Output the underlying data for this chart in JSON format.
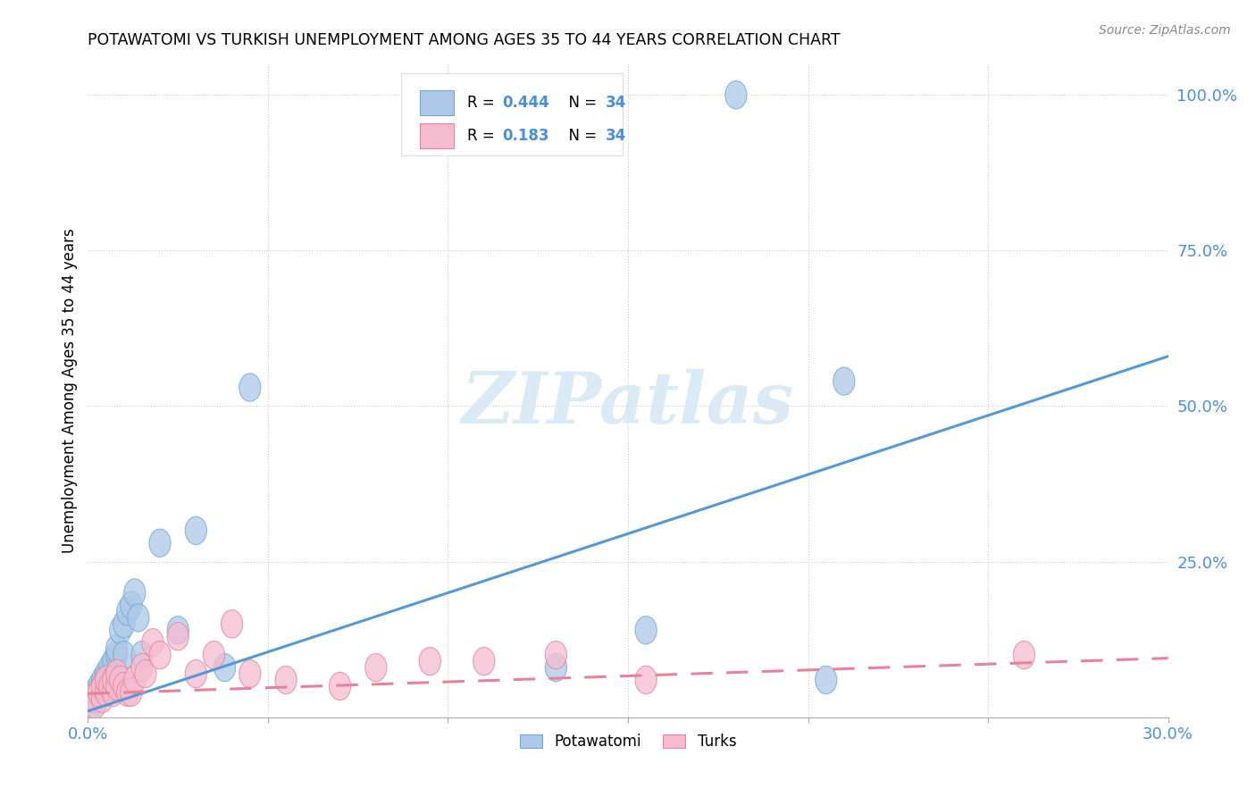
{
  "title": "POTAWATOMI VS TURKISH UNEMPLOYMENT AMONG AGES 35 TO 44 YEARS CORRELATION CHART",
  "source": "Source: ZipAtlas.com",
  "ylabel": "Unemployment Among Ages 35 to 44 years",
  "xlim": [
    0.0,
    0.3
  ],
  "ylim": [
    0.0,
    1.05
  ],
  "ytick_positions": [
    0.25,
    0.5,
    0.75,
    1.0
  ],
  "ytick_labels": [
    "25.0%",
    "50.0%",
    "75.0%",
    "100.0%"
  ],
  "potawatomi_color": "#adc8e8",
  "turks_color": "#f5bcd0",
  "potawatomi_edge_color": "#6aaad4",
  "turks_edge_color": "#e8829a",
  "potawatomi_line_color": "#5599d5",
  "turks_line_color": "#e8829a",
  "watermark_color": "#d5e8f5",
  "legend_R1": "0.444",
  "legend_R2": "0.183",
  "legend_N": "34",
  "legend_text_color": "#4a90d9",
  "pot_line_x0": 0.0,
  "pot_line_y0": 0.01,
  "pot_line_x1": 0.3,
  "pot_line_y1": 0.58,
  "turks_line_x0": 0.0,
  "turks_line_y0": 0.038,
  "turks_line_x1": 0.3,
  "turks_line_y1": 0.095,
  "potawatomi_x": [
    0.001,
    0.002,
    0.002,
    0.003,
    0.003,
    0.004,
    0.004,
    0.005,
    0.005,
    0.006,
    0.006,
    0.007,
    0.007,
    0.008,
    0.008,
    0.009,
    0.01,
    0.01,
    0.011,
    0.012,
    0.013,
    0.014,
    0.015,
    0.02,
    0.025,
    0.03,
    0.038,
    0.045,
    0.095,
    0.13,
    0.155,
    0.18,
    0.205,
    0.21
  ],
  "potawatomi_y": [
    0.02,
    0.03,
    0.04,
    0.04,
    0.05,
    0.05,
    0.06,
    0.06,
    0.07,
    0.07,
    0.08,
    0.07,
    0.09,
    0.1,
    0.11,
    0.14,
    0.1,
    0.15,
    0.17,
    0.18,
    0.2,
    0.16,
    0.1,
    0.28,
    0.14,
    0.3,
    0.08,
    0.53,
    1.0,
    0.08,
    0.14,
    1.0,
    0.06,
    0.54
  ],
  "turks_x": [
    0.001,
    0.002,
    0.003,
    0.004,
    0.004,
    0.005,
    0.005,
    0.006,
    0.007,
    0.007,
    0.008,
    0.008,
    0.009,
    0.01,
    0.011,
    0.012,
    0.013,
    0.015,
    0.016,
    0.018,
    0.02,
    0.025,
    0.03,
    0.035,
    0.04,
    0.045,
    0.055,
    0.07,
    0.08,
    0.095,
    0.11,
    0.13,
    0.155,
    0.26
  ],
  "turks_y": [
    0.03,
    0.02,
    0.04,
    0.03,
    0.05,
    0.04,
    0.06,
    0.05,
    0.04,
    0.06,
    0.05,
    0.07,
    0.06,
    0.05,
    0.04,
    0.04,
    0.06,
    0.08,
    0.07,
    0.12,
    0.1,
    0.13,
    0.07,
    0.1,
    0.15,
    0.07,
    0.06,
    0.05,
    0.08,
    0.09,
    0.09,
    0.1,
    0.06,
    0.1
  ]
}
